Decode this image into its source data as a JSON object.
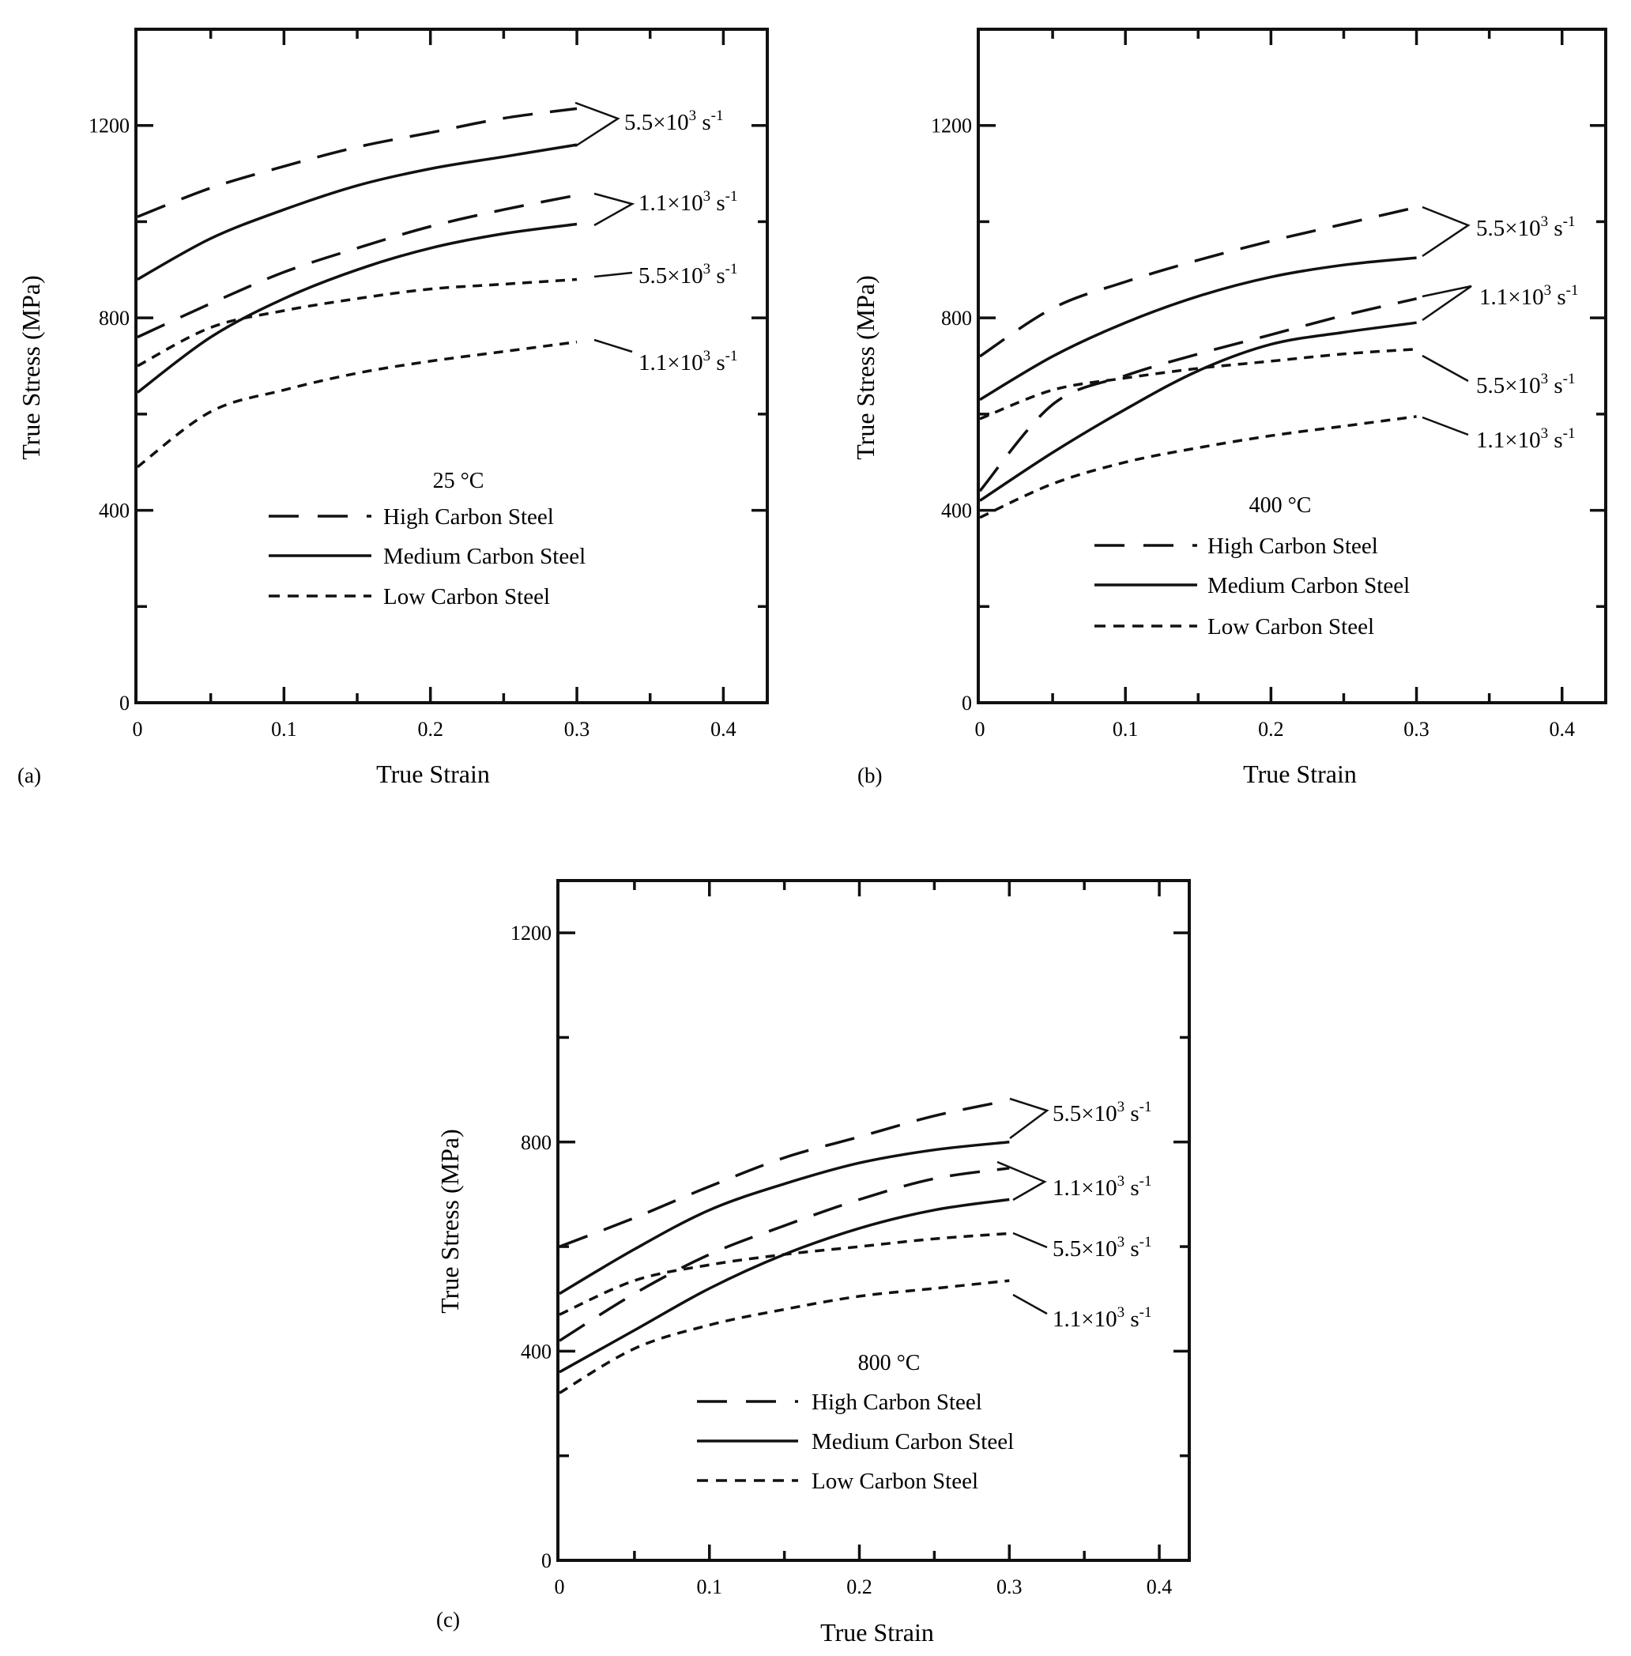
{
  "figure": {
    "panels": [
      {
        "id": "a",
        "panel_label": "(a)",
        "temperature_label": "25 °C",
        "xlabel": "True Strain",
        "ylabel": "True Stress (MPa)",
        "x_ticks": [
          "0",
          "0.1",
          "0.2",
          "0.3",
          "0.4"
        ],
        "y_ticks": [
          "0",
          "400",
          "800",
          "1200"
        ],
        "legend": [
          {
            "label": "High Carbon Steel",
            "style": "long-dash"
          },
          {
            "label": "Medium Carbon Steel",
            "style": "solid"
          },
          {
            "label": "Low Carbon Steel",
            "style": "short-dash"
          }
        ],
        "rate_labels": [
          {
            "mantissa": "5.5×10",
            "exp": "3",
            "unit": " s",
            "unit_exp": "-1"
          },
          {
            "mantissa": "1.1×10",
            "exp": "3",
            "unit": " s",
            "unit_exp": "-1"
          },
          {
            "mantissa": "5.5×10",
            "exp": "3",
            "unit": " s",
            "unit_exp": "-1"
          },
          {
            "mantissa": "1.1×10",
            "exp": "3",
            "unit": " s",
            "unit_exp": "-1"
          }
        ]
      },
      {
        "id": "b",
        "panel_label": "(b)",
        "temperature_label": "400  °C",
        "xlabel": "True Strain",
        "ylabel": "True Stress (MPa)",
        "x_ticks": [
          "0",
          "0.1",
          "0.2",
          "0.3",
          "0.4"
        ],
        "y_ticks": [
          "0",
          "400",
          "800",
          "1200"
        ],
        "legend": [
          {
            "label": "High Carbon Steel",
            "style": "long-dash"
          },
          {
            "label": "Medium Carbon Steel",
            "style": "solid"
          },
          {
            "label": "Low Carbon Steel",
            "style": "short-dash"
          }
        ],
        "rate_labels": [
          {
            "mantissa": "5.5×10",
            "exp": "3",
            "unit": " s",
            "unit_exp": "-1"
          },
          {
            "mantissa": "1.1×10",
            "exp": "3",
            "unit": " s",
            "unit_exp": "-1"
          },
          {
            "mantissa": "5.5×10",
            "exp": "3",
            "unit": " s",
            "unit_exp": "-1"
          },
          {
            "mantissa": "1.1×10",
            "exp": "3",
            "unit": " s",
            "unit_exp": "-1"
          }
        ]
      },
      {
        "id": "c",
        "panel_label": "(c)",
        "temperature_label": "800  °C",
        "xlabel": "True Strain",
        "ylabel": "True Stress (MPa)",
        "x_ticks": [
          "0",
          "0.1",
          "0.2",
          "0.3",
          "0.4"
        ],
        "y_ticks": [
          "0",
          "400",
          "800",
          "1200"
        ],
        "legend": [
          {
            "label": "High Carbon Steel",
            "style": "long-dash"
          },
          {
            "label": "Medium Carbon Steel",
            "style": "solid"
          },
          {
            "label": "Low Carbon Steel",
            "style": "short-dash"
          }
        ],
        "rate_labels": [
          {
            "mantissa": "5.5×10",
            "exp": "3",
            "unit": " s",
            "unit_exp": "-1"
          },
          {
            "mantissa": "1.1×10",
            "exp": "3",
            "unit": " s",
            "unit_exp": "-1"
          },
          {
            "mantissa": "5.5×10",
            "exp": "3",
            "unit": " s",
            "unit_exp": "-1"
          },
          {
            "mantissa": "1.1×10",
            "exp": "3",
            "unit": " s",
            "unit_exp": "-1"
          }
        ]
      }
    ]
  },
  "chart_data": [
    {
      "type": "line",
      "title": "25 °C",
      "xlabel": "True Strain",
      "ylabel": "True Stress (MPa)",
      "xlim": [
        0,
        0.43
      ],
      "ylim": [
        0,
        1400
      ],
      "x": [
        0,
        0.05,
        0.1,
        0.15,
        0.2,
        0.25,
        0.3
      ],
      "series": [
        {
          "name": "High Carbon Steel 5.5×10^3 s^-1",
          "material": "High Carbon Steel",
          "rate": "5.5×10^3 s^-1",
          "y": [
            1010,
            1070,
            1115,
            1155,
            1185,
            1215,
            1235
          ]
        },
        {
          "name": "Medium Carbon Steel 5.5×10^3 s^-1",
          "material": "Medium Carbon Steel",
          "rate": "5.5×10^3 s^-1",
          "y": [
            880,
            965,
            1025,
            1075,
            1110,
            1135,
            1160
          ]
        },
        {
          "name": "High Carbon Steel 1.1×10^3 s^-1",
          "material": "High Carbon Steel",
          "rate": "1.1×10^3 s^-1",
          "y": [
            760,
            830,
            895,
            945,
            990,
            1025,
            1055
          ]
        },
        {
          "name": "Medium Carbon Steel 1.1×10^3 s^-1",
          "material": "Medium Carbon Steel",
          "rate": "1.1×10^3 s^-1",
          "y": [
            645,
            760,
            840,
            900,
            945,
            975,
            995
          ]
        },
        {
          "name": "Low Carbon Steel 5.5×10^3 s^-1",
          "material": "Low Carbon Steel",
          "rate": "5.5×10^3 s^-1",
          "y": [
            700,
            780,
            815,
            840,
            860,
            870,
            880
          ]
        },
        {
          "name": "Low Carbon Steel 1.1×10^3 s^-1",
          "material": "Low Carbon Steel",
          "rate": "1.1×10^3 s^-1",
          "y": [
            490,
            605,
            650,
            685,
            710,
            730,
            750
          ]
        }
      ]
    },
    {
      "type": "line",
      "title": "400  °C",
      "xlabel": "True Strain",
      "ylabel": "True Stress (MPa)",
      "xlim": [
        0,
        0.43
      ],
      "ylim": [
        0,
        1400
      ],
      "x": [
        0,
        0.05,
        0.1,
        0.15,
        0.2,
        0.25,
        0.3
      ],
      "series": [
        {
          "name": "High Carbon Steel 5.5×10^3 s^-1",
          "material": "High Carbon Steel",
          "rate": "5.5×10^3 s^-1",
          "y": [
            720,
            820,
            875,
            920,
            960,
            995,
            1030
          ]
        },
        {
          "name": "Medium Carbon Steel 5.5×10^3 s^-1",
          "material": "Medium Carbon Steel",
          "rate": "5.5×10^3 s^-1",
          "y": [
            630,
            720,
            790,
            845,
            885,
            910,
            925
          ]
        },
        {
          "name": "High Carbon Steel 1.1×10^3 s^-1",
          "material": "High Carbon Steel",
          "rate": "1.1×10^3 s^-1",
          "y": [
            440,
            620,
            680,
            725,
            765,
            805,
            840
          ]
        },
        {
          "name": "Medium Carbon Steel 1.1×10^3 s^-1",
          "material": "Medium Carbon Steel",
          "rate": "1.1×10^3 s^-1",
          "y": [
            420,
            520,
            610,
            690,
            745,
            770,
            790
          ]
        },
        {
          "name": "Low Carbon Steel 5.5×10^3 s^-1",
          "material": "Low Carbon Steel",
          "rate": "5.5×10^3 s^-1",
          "y": [
            590,
            650,
            675,
            695,
            710,
            725,
            735
          ]
        },
        {
          "name": "Low Carbon Steel 1.1×10^3 s^-1",
          "material": "Low Carbon Steel",
          "rate": "1.1×10^3 s^-1",
          "y": [
            385,
            455,
            500,
            530,
            555,
            575,
            595
          ]
        }
      ]
    },
    {
      "type": "line",
      "title": "800  °C",
      "xlabel": "True Strain",
      "ylabel": "True Stress (MPa)",
      "xlim": [
        0,
        0.42
      ],
      "ylim": [
        0,
        1300
      ],
      "x": [
        0,
        0.05,
        0.1,
        0.15,
        0.2,
        0.25,
        0.3
      ],
      "series": [
        {
          "name": "High Carbon Steel 5.5×10^3 s^-1",
          "material": "High Carbon Steel",
          "rate": "5.5×10^3 s^-1",
          "y": [
            600,
            655,
            715,
            770,
            810,
            850,
            880
          ]
        },
        {
          "name": "Medium Carbon Steel 5.5×10^3 s^-1",
          "material": "Medium Carbon Steel",
          "rate": "5.5×10^3 s^-1",
          "y": [
            510,
            595,
            670,
            720,
            760,
            785,
            800
          ]
        },
        {
          "name": "High Carbon Steel 1.1×10^3 s^-1",
          "material": "High Carbon Steel",
          "rate": "1.1×10^3 s^-1",
          "y": [
            420,
            510,
            585,
            640,
            690,
            730,
            750
          ]
        },
        {
          "name": "Medium Carbon Steel 1.1×10^3 s^-1",
          "material": "Medium Carbon Steel",
          "rate": "1.1×10^3 s^-1",
          "y": [
            360,
            440,
            520,
            585,
            635,
            670,
            690
          ]
        },
        {
          "name": "Low Carbon Steel 5.5×10^3 s^-1",
          "material": "Low Carbon Steel",
          "rate": "5.5×10^3 s^-1",
          "y": [
            470,
            535,
            565,
            585,
            600,
            615,
            625
          ]
        },
        {
          "name": "Low Carbon Steel 1.1×10^3 s^-1",
          "material": "Low Carbon Steel",
          "rate": "1.1×10^3 s^-1",
          "y": [
            320,
            405,
            450,
            480,
            505,
            520,
            535
          ]
        }
      ]
    }
  ]
}
